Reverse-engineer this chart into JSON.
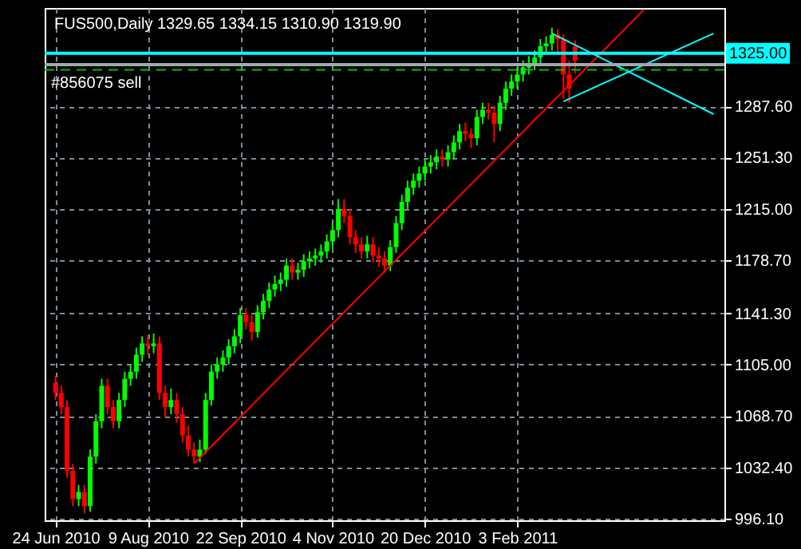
{
  "chart_data": {
    "type": "candlestick",
    "title": "FUS500,Daily  1329.65 1334.15 1310.90 1319.90",
    "categories": [
      "24 Jun 2010",
      null,
      null,
      null,
      null,
      null,
      null,
      null,
      null,
      null,
      null,
      null,
      null,
      null,
      null,
      null,
      "9 Aug 2010",
      null,
      null,
      null,
      null,
      null,
      null,
      null,
      null,
      null,
      null,
      null,
      null,
      null,
      null,
      null,
      "22 Sep 2010",
      null,
      null,
      null,
      null,
      null,
      null,
      null,
      null,
      null,
      null,
      null,
      null,
      null,
      null,
      null,
      "4 Nov 2010",
      null,
      null,
      null,
      null,
      null,
      null,
      null,
      null,
      null,
      null,
      null,
      null,
      null,
      null,
      null,
      "20 Dec 2010",
      null,
      null,
      null,
      null,
      null,
      null,
      null,
      null,
      null,
      null,
      null,
      null,
      null,
      null,
      null,
      "3 Feb 2011",
      null,
      null,
      null,
      null,
      null,
      null,
      null,
      null,
      null,
      null,
      null,
      null,
      null,
      null,
      null,
      null,
      null,
      null,
      null,
      null,
      null,
      null,
      null,
      null,
      null,
      null,
      null,
      null,
      null,
      null,
      null,
      null,
      null,
      null
    ],
    "ohlc": [
      [
        1092,
        1097,
        1080,
        1085
      ],
      [
        1085,
        1090,
        1070,
        1075
      ],
      [
        1075,
        1080,
        1025,
        1030
      ],
      [
        1030,
        1035,
        1005,
        1010
      ],
      [
        1010,
        1020,
        1005,
        1015
      ],
      [
        1015,
        1020,
        1000,
        1005
      ],
      [
        1005,
        1045,
        1001,
        1040
      ],
      [
        1040,
        1070,
        1035,
        1065
      ],
      [
        1065,
        1095,
        1060,
        1090
      ],
      [
        1090,
        1095,
        1070,
        1075
      ],
      [
        1075,
        1080,
        1060,
        1065
      ],
      [
        1065,
        1085,
        1060,
        1080
      ],
      [
        1080,
        1100,
        1075,
        1095
      ],
      [
        1095,
        1105,
        1090,
        1100
      ],
      [
        1100,
        1117,
        1095,
        1112
      ],
      [
        1112,
        1125,
        1107,
        1120
      ],
      [
        1120,
        1126,
        1112,
        1118
      ],
      [
        1118,
        1127,
        1113,
        1120
      ],
      [
        1120,
        1125,
        1080,
        1085
      ],
      [
        1085,
        1090,
        1068,
        1075
      ],
      [
        1075,
        1088,
        1070,
        1080
      ],
      [
        1080,
        1085,
        1064,
        1070
      ],
      [
        1070,
        1075,
        1050,
        1055
      ],
      [
        1055,
        1062,
        1040,
        1045
      ],
      [
        1045,
        1050,
        1035,
        1040
      ],
      [
        1040,
        1052,
        1036,
        1045
      ],
      [
        1045,
        1085,
        1042,
        1080
      ],
      [
        1080,
        1105,
        1076,
        1100
      ],
      [
        1100,
        1110,
        1095,
        1105
      ],
      [
        1105,
        1115,
        1100,
        1110
      ],
      [
        1110,
        1123,
        1105,
        1118
      ],
      [
        1118,
        1130,
        1113,
        1125
      ],
      [
        1125,
        1145,
        1120,
        1140
      ],
      [
        1140,
        1145,
        1130,
        1135
      ],
      [
        1135,
        1140,
        1122,
        1128
      ],
      [
        1128,
        1147,
        1124,
        1142
      ],
      [
        1142,
        1155,
        1137,
        1150
      ],
      [
        1150,
        1163,
        1145,
        1158
      ],
      [
        1158,
        1168,
        1153,
        1162
      ],
      [
        1162,
        1170,
        1157,
        1165
      ],
      [
        1165,
        1180,
        1160,
        1175
      ],
      [
        1175,
        1180,
        1165,
        1170
      ],
      [
        1170,
        1177,
        1165,
        1172
      ],
      [
        1172,
        1183,
        1167,
        1178
      ],
      [
        1178,
        1185,
        1173,
        1180
      ],
      [
        1180,
        1187,
        1175,
        1182
      ],
      [
        1182,
        1190,
        1177,
        1185
      ],
      [
        1185,
        1197,
        1180,
        1192
      ],
      [
        1192,
        1205,
        1187,
        1200
      ],
      [
        1200,
        1222,
        1195,
        1215
      ],
      [
        1215,
        1222,
        1205,
        1210
      ],
      [
        1210,
        1215,
        1190,
        1195
      ],
      [
        1195,
        1200,
        1184,
        1190
      ],
      [
        1190,
        1195,
        1180,
        1185
      ],
      [
        1185,
        1196,
        1180,
        1190
      ],
      [
        1190,
        1195,
        1177,
        1182
      ],
      [
        1182,
        1188,
        1174,
        1180
      ],
      [
        1180,
        1185,
        1170,
        1175
      ],
      [
        1175,
        1193,
        1171,
        1188
      ],
      [
        1188,
        1210,
        1184,
        1205
      ],
      [
        1205,
        1225,
        1200,
        1220
      ],
      [
        1220,
        1235,
        1215,
        1230
      ],
      [
        1230,
        1240,
        1225,
        1235
      ],
      [
        1235,
        1245,
        1230,
        1240
      ],
      [
        1240,
        1250,
        1235,
        1245
      ],
      [
        1245,
        1253,
        1240,
        1248
      ],
      [
        1248,
        1257,
        1243,
        1252
      ],
      [
        1252,
        1257,
        1245,
        1250
      ],
      [
        1250,
        1260,
        1245,
        1255
      ],
      [
        1255,
        1267,
        1250,
        1262
      ],
      [
        1262,
        1275,
        1257,
        1270
      ],
      [
        1270,
        1276,
        1263,
        1268
      ],
      [
        1268,
        1272,
        1258,
        1265
      ],
      [
        1265,
        1285,
        1260,
        1280
      ],
      [
        1280,
        1290,
        1275,
        1285
      ],
      [
        1285,
        1290,
        1278,
        1283
      ],
      [
        1283,
        1288,
        1262,
        1275
      ],
      [
        1275,
        1295,
        1270,
        1290
      ],
      [
        1290,
        1305,
        1285,
        1300
      ],
      [
        1300,
        1310,
        1295,
        1305
      ],
      [
        1305,
        1315,
        1300,
        1310
      ],
      [
        1310,
        1320,
        1305,
        1315
      ],
      [
        1315,
        1323,
        1310,
        1318
      ],
      [
        1318,
        1327,
        1313,
        1322
      ],
      [
        1322,
        1335,
        1317,
        1330
      ],
      [
        1330,
        1337,
        1325,
        1332
      ],
      [
        1332,
        1343,
        1327,
        1338
      ],
      [
        1338,
        1342,
        1325,
        1335
      ],
      [
        1335,
        1338,
        1293,
        1310
      ],
      [
        1310,
        1320,
        1290,
        1300
      ],
      [
        1329.65,
        1334.15,
        1310.9,
        1319.9
      ],
      null,
      null,
      null,
      null,
      null,
      null,
      null,
      null,
      null,
      null,
      null,
      null,
      null,
      null,
      null,
      null,
      null,
      null,
      null,
      null,
      null,
      null,
      null,
      null
    ],
    "colors": [
      "#ff0000",
      "#ff0000",
      "#ff0000",
      "#ff0000",
      "#00ff00",
      "#ff0000",
      "#00ff00",
      "#00ff00",
      "#00ff00",
      "#ff0000",
      "#ff0000",
      "#00ff00",
      "#00ff00",
      "#00ff00",
      "#00ff00",
      "#00ff00",
      "#ff0000",
      "#00ff00",
      "#ff0000",
      "#ff0000",
      "#00ff00",
      "#ff0000",
      "#ff0000",
      "#ff0000",
      "#ff0000",
      "#00ff00",
      "#00ff00",
      "#00ff00",
      "#00ff00",
      "#00ff00",
      "#00ff00",
      "#00ff00",
      "#00ff00",
      "#ff0000",
      "#ff0000",
      "#00ff00",
      "#00ff00",
      "#00ff00",
      "#00ff00",
      "#00ff00",
      "#00ff00",
      "#ff0000",
      "#00ff00",
      "#00ff00",
      "#00ff00",
      "#00ff00",
      "#00ff00",
      "#00ff00",
      "#00ff00",
      "#00ff00",
      "#ff0000",
      "#ff0000",
      "#ff0000",
      "#ff0000",
      "#00ff00",
      "#ff0000",
      "#ff0000",
      "#ff0000",
      "#00ff00",
      "#00ff00",
      "#00ff00",
      "#00ff00",
      "#00ff00",
      "#00ff00",
      "#00ff00",
      "#00ff00",
      "#00ff00",
      "#ff0000",
      "#00ff00",
      "#00ff00",
      "#00ff00",
      "#ff0000",
      "#ff0000",
      "#00ff00",
      "#00ff00",
      "#ff0000",
      "#ff0000",
      "#00ff00",
      "#00ff00",
      "#00ff00",
      "#00ff00",
      "#00ff00",
      "#00ff00",
      "#00ff00",
      "#00ff00",
      "#00ff00",
      "#00ff00",
      "#ff0000",
      "#ff0000",
      "#ff0000",
      "#ff0000",
      null,
      null,
      null,
      null,
      null,
      null,
      null,
      null,
      null,
      null,
      null,
      null,
      null,
      null,
      null,
      null,
      null,
      null,
      null,
      null,
      null,
      null,
      null,
      null
    ],
    "series": [
      {
        "type": "line",
        "color": "#ff0000",
        "values": [
          null,
          null,
          null,
          null,
          null,
          null,
          null,
          null,
          null,
          null,
          null,
          null,
          null,
          null,
          null,
          null,
          null,
          null,
          null,
          null,
          null,
          null,
          null,
          null,
          1035,
          null,
          null,
          null,
          null,
          null,
          null,
          null,
          null,
          null,
          null,
          null,
          null,
          null,
          null,
          null,
          null,
          null,
          null,
          null,
          null,
          null,
          null,
          null,
          null,
          null,
          null,
          null,
          null,
          null,
          null,
          null,
          null,
          null,
          null,
          null,
          null,
          null,
          null,
          null,
          null,
          null,
          null,
          null,
          null,
          null,
          null,
          null,
          null,
          null,
          null,
          null,
          null,
          null,
          null,
          null,
          null,
          null,
          null,
          null,
          null,
          null,
          null,
          null,
          null,
          null,
          null,
          null,
          null,
          null,
          null,
          null,
          null,
          null,
          null,
          null,
          null,
          null,
          1356,
          null,
          null,
          null,
          null,
          null,
          null,
          null,
          null,
          null,
          null,
          null,
          null
        ]
      },
      {
        "type": "line",
        "color": "#00ffff",
        "values": [
          null,
          null,
          null,
          null,
          null,
          null,
          null,
          null,
          null,
          null,
          null,
          null,
          null,
          null,
          null,
          null,
          null,
          null,
          null,
          null,
          null,
          null,
          null,
          null,
          null,
          null,
          null,
          null,
          null,
          null,
          null,
          null,
          null,
          null,
          null,
          null,
          null,
          null,
          null,
          null,
          null,
          null,
          null,
          null,
          null,
          null,
          null,
          null,
          null,
          null,
          null,
          null,
          null,
          null,
          null,
          null,
          null,
          null,
          null,
          null,
          null,
          null,
          null,
          null,
          null,
          null,
          null,
          null,
          null,
          null,
          null,
          null,
          null,
          null,
          null,
          null,
          null,
          null,
          null,
          null,
          null,
          null,
          null,
          null,
          null,
          null,
          1339,
          null,
          null,
          null,
          null,
          null,
          null,
          null,
          null,
          null,
          null,
          null,
          null,
          null,
          null,
          null,
          null,
          null,
          null,
          null,
          null,
          null,
          null,
          null,
          null,
          null,
          null,
          null,
          1282
        ]
      },
      {
        "type": "line",
        "color": "#00ffff",
        "values": [
          null,
          null,
          null,
          null,
          null,
          null,
          null,
          null,
          null,
          null,
          null,
          null,
          null,
          null,
          null,
          null,
          null,
          null,
          null,
          null,
          null,
          null,
          null,
          null,
          null,
          null,
          null,
          null,
          null,
          null,
          null,
          null,
          null,
          null,
          null,
          null,
          null,
          null,
          null,
          null,
          null,
          null,
          null,
          null,
          null,
          null,
          null,
          null,
          null,
          null,
          null,
          null,
          null,
          null,
          null,
          null,
          null,
          null,
          null,
          null,
          null,
          null,
          null,
          null,
          null,
          null,
          null,
          null,
          null,
          null,
          null,
          null,
          null,
          null,
          null,
          null,
          null,
          null,
          null,
          null,
          null,
          null,
          null,
          null,
          null,
          null,
          null,
          null,
          1291,
          null,
          null,
          null,
          null,
          null,
          null,
          null,
          null,
          null,
          null,
          null,
          null,
          null,
          null,
          null,
          null,
          null,
          null,
          null,
          null,
          null,
          null,
          null,
          null,
          null,
          1339
        ]
      }
    ],
    "ylim": [
      995,
      1357
    ],
    "yticks": [
      {
        "value": 996.1,
        "label": "996.10"
      },
      {
        "value": 1032.4,
        "label": "1032.40"
      },
      {
        "value": 1068.7,
        "label": "1068.70"
      },
      {
        "value": 1105,
        "label": "1105.00"
      },
      {
        "value": 1141.3,
        "label": "1141.30"
      },
      {
        "value": 1178.7,
        "label": "1178.70"
      },
      {
        "value": 1215,
        "label": "1215.00"
      },
      {
        "value": 1251.3,
        "label": "1251.30"
      },
      {
        "value": 1287.6,
        "label": "1287.60"
      }
    ],
    "ref_lines": [
      {
        "axis": "y",
        "value": 1325,
        "label": "1325.00",
        "color": "#00ffff"
      },
      {
        "axis": "y",
        "value": 1317,
        "color": "#a0a8b0"
      },
      {
        "axis": "y",
        "value": 1313.3,
        "label": "#856075 sell",
        "color": "#00c000",
        "line_style": "dashed"
      }
    ],
    "grid": true
  }
}
